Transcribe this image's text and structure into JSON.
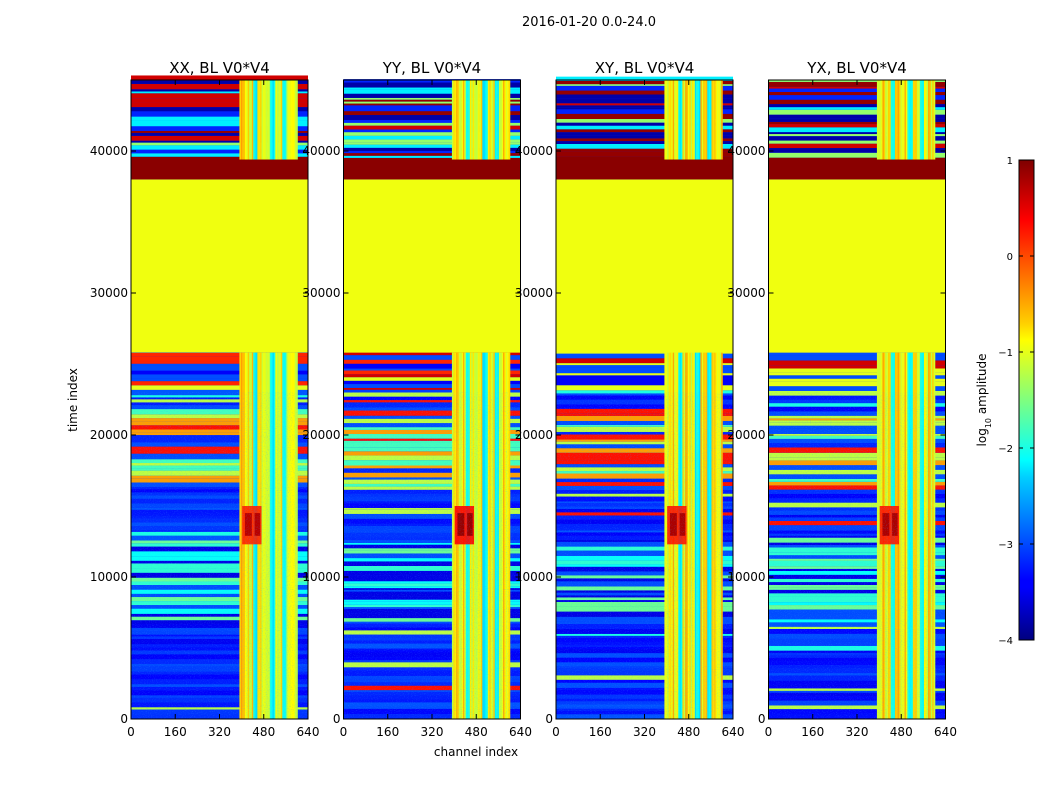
{
  "suptitle": "2016-01-20 0.0-24.0",
  "chart_data": {
    "type": "heatmap",
    "xlabel": "channel index",
    "ylabel": "time index",
    "xlim": [
      0,
      640
    ],
    "ylim": [
      0,
      45000
    ],
    "xticks": [
      0,
      160,
      320,
      480,
      640
    ],
    "yticks": [
      0,
      10000,
      20000,
      30000,
      40000
    ],
    "xtick_labels": [
      "0",
      "160",
      "320",
      "480",
      "640"
    ],
    "ytick_labels": [
      "0",
      "10000",
      "20000",
      "30000",
      "40000"
    ],
    "panels": [
      {
        "title": "XX, BL V0*V4",
        "hotspot_level": 0.72
      },
      {
        "title": "YY, BL V0*V4",
        "hotspot_level": 0.88
      },
      {
        "title": "XY, BL V0*V4",
        "hotspot_level": 0.78
      },
      {
        "title": "YX, BL V0*V4",
        "hotspot_level": 0.78
      }
    ],
    "colorbar": {
      "label": "log10 amplitude",
      "range": [
        -4,
        1
      ],
      "ticks": [
        1,
        0,
        -1,
        -2,
        -3,
        -4
      ],
      "tick_labels": [
        "1",
        "0",
        "−1",
        "−2",
        "−3",
        "−4"
      ],
      "colormap": "jet"
    },
    "features": {
      "flagged_time_range": [
        25800,
        38000
      ],
      "flagged_level": -0.95,
      "saturated_time_range": [
        38000,
        39400
      ],
      "rfi_channel_range": [
        392,
        600
      ],
      "background_level": -3.2,
      "noise_time_range": [
        0,
        23000
      ]
    }
  }
}
